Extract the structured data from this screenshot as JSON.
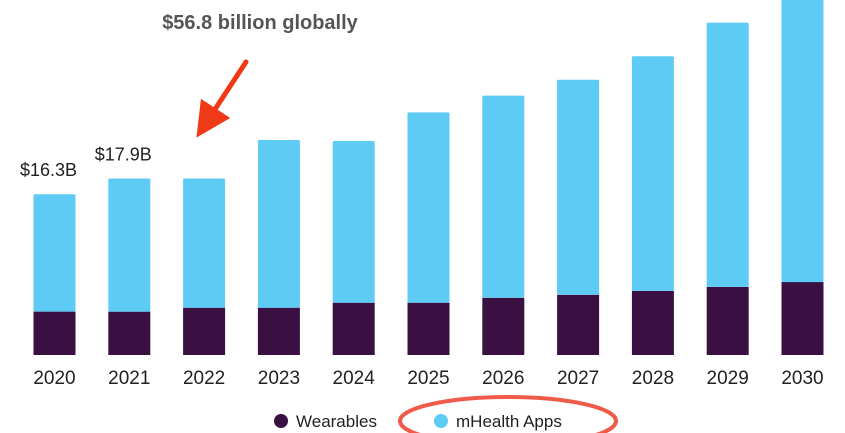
{
  "chart_data": {
    "type": "bar",
    "stacked": true,
    "categories": [
      "2020",
      "2021",
      "2022",
      "2023",
      "2024",
      "2025",
      "2026",
      "2027",
      "2028",
      "2029",
      "2030"
    ],
    "series": [
      {
        "name": "Wearables",
        "color": "#3a1043",
        "values": [
          4.4,
          4.4,
          4.8,
          4.8,
          5.3,
          5.3,
          5.8,
          6.1,
          6.5,
          6.9,
          7.4
        ]
      },
      {
        "name": "mHealth Apps",
        "color": "#5ecbf5",
        "values": [
          11.9,
          13.5,
          13.1,
          17.0,
          16.4,
          19.3,
          20.5,
          21.8,
          23.8,
          26.8,
          29.5
        ]
      }
    ],
    "data_labels": [
      {
        "category": "2020",
        "text": "$16.3B"
      },
      {
        "category": "2021",
        "text": "$17.9B"
      }
    ],
    "annotation": {
      "text": "$56.8 billion globally",
      "target_category": "2022",
      "arrow_color": "#f03a17"
    },
    "ylim": [
      0,
      36.5
    ],
    "grid": false,
    "legend_position": "bottom-center",
    "highlight_legend": "mHealth Apps",
    "highlight_color": "#f05a4a"
  }
}
